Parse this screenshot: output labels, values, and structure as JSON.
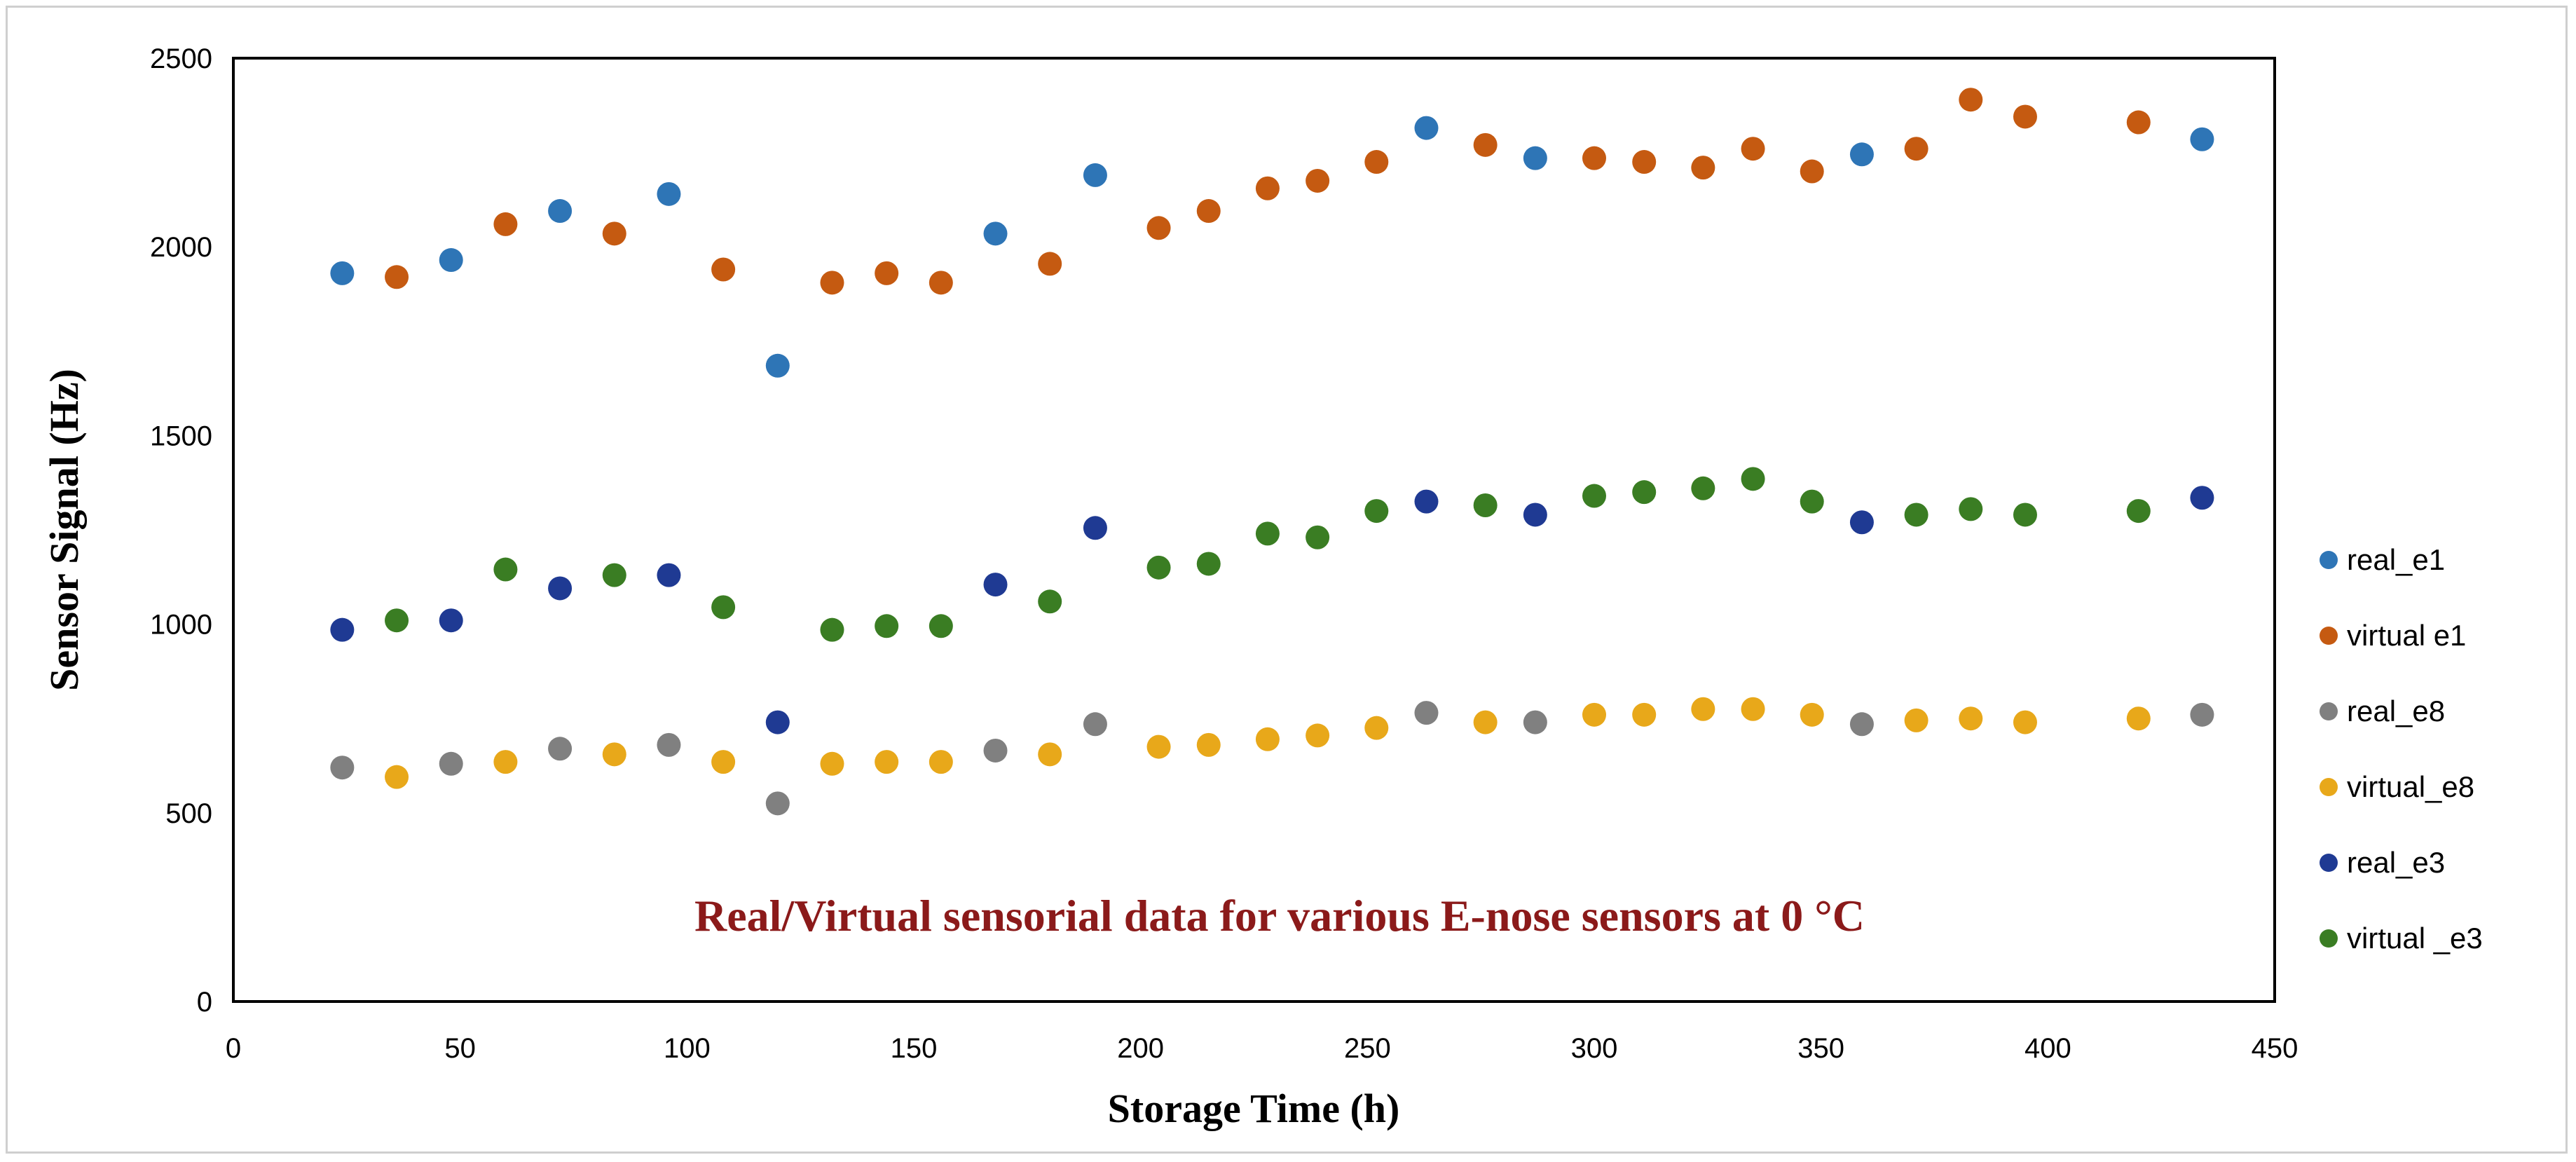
{
  "chart_data": {
    "type": "scatter",
    "title": "",
    "xlabel": "Storage Time (h)",
    "ylabel": "Sensor Signal (Hz)",
    "xlim": [
      0,
      450
    ],
    "ylim": [
      0,
      2500
    ],
    "xticks": [
      0,
      50,
      100,
      150,
      200,
      250,
      300,
      350,
      400,
      450
    ],
    "yticks": [
      0,
      500,
      1000,
      1500,
      2000,
      2500
    ],
    "grid": false,
    "legend_position": "right",
    "annotation": "Real/Virtual  sensorial data for various E-nose sensors at 0 °C",
    "series": [
      {
        "name": "real_e1",
        "color": "#2e75b6",
        "points": [
          [
            24,
            1930
          ],
          [
            48,
            1965
          ],
          [
            72,
            2095
          ],
          [
            96,
            2140
          ],
          [
            120,
            1685
          ],
          [
            168,
            2035
          ],
          [
            190,
            2190
          ],
          [
            263,
            2315
          ],
          [
            287,
            2235
          ],
          [
            359,
            2245
          ],
          [
            434,
            2285
          ]
        ]
      },
      {
        "name": "virtual e1",
        "color": "#c55a11",
        "points": [
          [
            36,
            1920
          ],
          [
            60,
            2060
          ],
          [
            84,
            2035
          ],
          [
            108,
            1940
          ],
          [
            132,
            1905
          ],
          [
            144,
            1930
          ],
          [
            156,
            1905
          ],
          [
            180,
            1955
          ],
          [
            204,
            2050
          ],
          [
            215,
            2095
          ],
          [
            228,
            2155
          ],
          [
            239,
            2175
          ],
          [
            252,
            2225
          ],
          [
            276,
            2270
          ],
          [
            300,
            2235
          ],
          [
            311,
            2225
          ],
          [
            324,
            2210
          ],
          [
            335,
            2260
          ],
          [
            348,
            2200
          ],
          [
            371,
            2260
          ],
          [
            383,
            2390
          ],
          [
            395,
            2345
          ],
          [
            420,
            2330
          ]
        ]
      },
      {
        "name": "real_e8",
        "color": "#808080",
        "points": [
          [
            24,
            620
          ],
          [
            48,
            630
          ],
          [
            72,
            670
          ],
          [
            96,
            680
          ],
          [
            120,
            525
          ],
          [
            168,
            665
          ],
          [
            190,
            735
          ],
          [
            263,
            765
          ],
          [
            287,
            740
          ],
          [
            359,
            735
          ],
          [
            434,
            760
          ]
        ]
      },
      {
        "name": "virtual_e8",
        "color": "#e8a81a",
        "points": [
          [
            36,
            595
          ],
          [
            60,
            635
          ],
          [
            84,
            655
          ],
          [
            108,
            635
          ],
          [
            132,
            630
          ],
          [
            144,
            635
          ],
          [
            156,
            635
          ],
          [
            180,
            655
          ],
          [
            204,
            675
          ],
          [
            215,
            680
          ],
          [
            228,
            695
          ],
          [
            239,
            705
          ],
          [
            252,
            725
          ],
          [
            276,
            740
          ],
          [
            300,
            760
          ],
          [
            311,
            760
          ],
          [
            324,
            775
          ],
          [
            335,
            775
          ],
          [
            348,
            760
          ],
          [
            371,
            745
          ],
          [
            383,
            750
          ],
          [
            395,
            740
          ],
          [
            420,
            750
          ]
        ]
      },
      {
        "name": "real_e3",
        "color": "#1f3a93",
        "points": [
          [
            24,
            985
          ],
          [
            48,
            1010
          ],
          [
            72,
            1095
          ],
          [
            96,
            1130
          ],
          [
            120,
            740
          ],
          [
            168,
            1105
          ],
          [
            190,
            1255
          ],
          [
            263,
            1325
          ],
          [
            287,
            1290
          ],
          [
            359,
            1270
          ],
          [
            434,
            1335
          ]
        ]
      },
      {
        "name": "virtual _e3",
        "color": "#3a7d23",
        "points": [
          [
            36,
            1010
          ],
          [
            60,
            1145
          ],
          [
            84,
            1130
          ],
          [
            108,
            1045
          ],
          [
            132,
            985
          ],
          [
            144,
            995
          ],
          [
            156,
            995
          ],
          [
            180,
            1060
          ],
          [
            204,
            1150
          ],
          [
            215,
            1160
          ],
          [
            228,
            1240
          ],
          [
            239,
            1230
          ],
          [
            252,
            1300
          ],
          [
            276,
            1315
          ],
          [
            300,
            1340
          ],
          [
            311,
            1350
          ],
          [
            324,
            1360
          ],
          [
            335,
            1385
          ],
          [
            348,
            1325
          ],
          [
            371,
            1290
          ],
          [
            383,
            1305
          ],
          [
            395,
            1290
          ],
          [
            420,
            1300
          ]
        ]
      }
    ]
  }
}
